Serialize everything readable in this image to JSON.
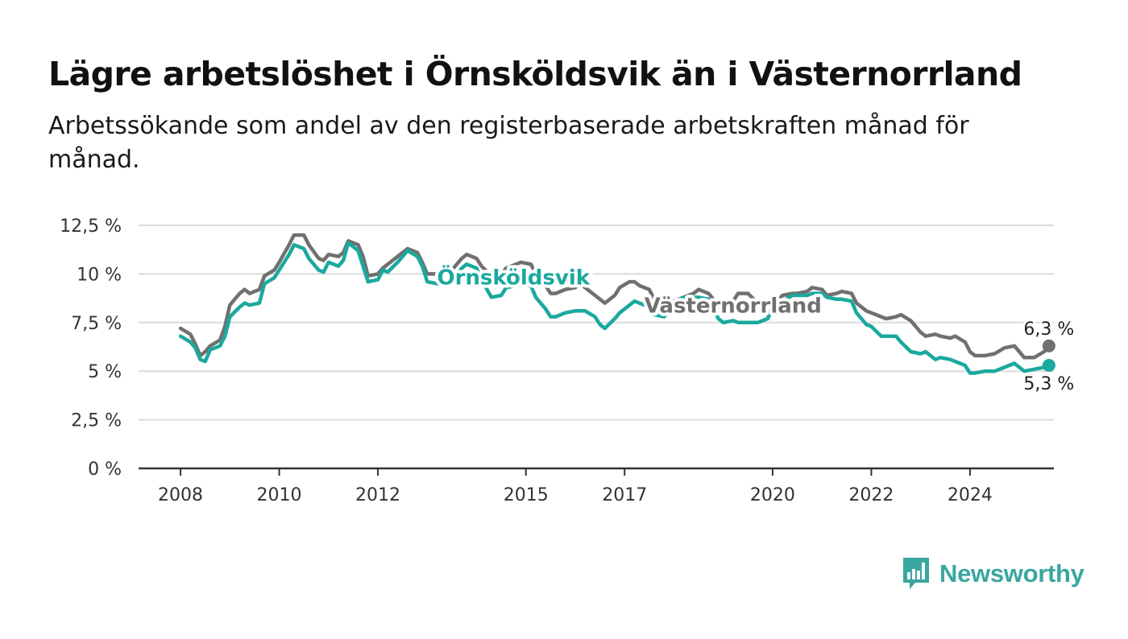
{
  "header": {
    "title": "Lägre arbetslöshet i Örnsköldsvik än i Västernorrland",
    "subtitle": "Arbetssökande som andel av den registerbaserade arbetskraften månad för månad."
  },
  "brand": {
    "name": "Newsworthy",
    "logo_icon": "bar-chart-speech-bubble-icon",
    "color": "#3aa6a0"
  },
  "chart_data": {
    "type": "line",
    "title": "Lägre arbetslöshet i Örnsköldsvik än i Västernorrland",
    "subtitle": "Arbetssökande som andel av den registerbaserade arbetskraften månad för månad.",
    "xlabel": "",
    "ylabel": "",
    "ylim": [
      0,
      12.5
    ],
    "xlim": [
      2007.15,
      2025.7
    ],
    "y_ticks": [
      0,
      2.5,
      5,
      7.5,
      10,
      12.5
    ],
    "y_tick_labels": [
      "0 %",
      "2,5 %",
      "5 %",
      "7,5 %",
      "10 %",
      "12,5 %"
    ],
    "x_ticks": [
      2008,
      2010,
      2012,
      2015,
      2017,
      2020,
      2022,
      2024
    ],
    "x_tick_labels": [
      "2008",
      "2010",
      "2012",
      "2015",
      "2017",
      "2020",
      "2022",
      "2024"
    ],
    "grid": "horizontal",
    "legend": "inline labels",
    "series": [
      {
        "name": "Västernorrland",
        "color": "#707070",
        "end_label": "6,3 %",
        "points": [
          [
            2008.0,
            7.2
          ],
          [
            2008.2,
            6.9
          ],
          [
            2008.3,
            6.4
          ],
          [
            2008.4,
            5.8
          ],
          [
            2008.5,
            6.0
          ],
          [
            2008.6,
            6.3
          ],
          [
            2008.8,
            6.6
          ],
          [
            2008.9,
            7.3
          ],
          [
            2009.0,
            8.4
          ],
          [
            2009.2,
            9.0
          ],
          [
            2009.3,
            9.2
          ],
          [
            2009.4,
            9.0
          ],
          [
            2009.6,
            9.2
          ],
          [
            2009.7,
            9.9
          ],
          [
            2009.9,
            10.2
          ],
          [
            2010.0,
            10.6
          ],
          [
            2010.2,
            11.5
          ],
          [
            2010.3,
            12.0
          ],
          [
            2010.5,
            12.0
          ],
          [
            2010.6,
            11.5
          ],
          [
            2010.8,
            10.8
          ],
          [
            2010.9,
            10.7
          ],
          [
            2011.0,
            11.0
          ],
          [
            2011.2,
            10.9
          ],
          [
            2011.3,
            11.1
          ],
          [
            2011.4,
            11.7
          ],
          [
            2011.6,
            11.5
          ],
          [
            2011.7,
            10.9
          ],
          [
            2011.8,
            9.9
          ],
          [
            2012.0,
            10.0
          ],
          [
            2012.1,
            10.3
          ],
          [
            2012.2,
            10.5
          ],
          [
            2012.4,
            10.9
          ],
          [
            2012.6,
            11.3
          ],
          [
            2012.8,
            11.1
          ],
          [
            2012.9,
            10.6
          ],
          [
            2013.0,
            10.0
          ],
          [
            2013.2,
            10.0
          ],
          [
            2013.3,
            10.0
          ],
          [
            2013.5,
            10.2
          ],
          [
            2013.7,
            10.8
          ],
          [
            2013.8,
            11.0
          ],
          [
            2014.0,
            10.8
          ],
          [
            2014.1,
            10.4
          ],
          [
            2014.3,
            9.9
          ],
          [
            2014.5,
            10.0
          ],
          [
            2014.6,
            10.3
          ],
          [
            2014.8,
            10.5
          ],
          [
            2014.9,
            10.6
          ],
          [
            2015.1,
            10.5
          ],
          [
            2015.2,
            10.0
          ],
          [
            2015.4,
            9.4
          ],
          [
            2015.5,
            9.0
          ],
          [
            2015.6,
            9.0
          ],
          [
            2015.8,
            9.2
          ],
          [
            2016.0,
            9.3
          ],
          [
            2016.1,
            9.5
          ],
          [
            2016.2,
            9.3
          ],
          [
            2016.4,
            8.9
          ],
          [
            2016.5,
            8.7
          ],
          [
            2016.6,
            8.5
          ],
          [
            2016.8,
            8.9
          ],
          [
            2016.9,
            9.3
          ],
          [
            2017.1,
            9.6
          ],
          [
            2017.2,
            9.6
          ],
          [
            2017.3,
            9.4
          ],
          [
            2017.5,
            9.2
          ],
          [
            2017.6,
            8.7
          ],
          [
            2017.8,
            8.2
          ],
          [
            2017.9,
            8.3
          ],
          [
            2018.0,
            8.6
          ],
          [
            2018.2,
            8.8
          ],
          [
            2018.4,
            9.0
          ],
          [
            2018.5,
            9.2
          ],
          [
            2018.7,
            9.0
          ],
          [
            2018.8,
            8.7
          ],
          [
            2018.9,
            8.3
          ],
          [
            2019.0,
            8.2
          ],
          [
            2019.2,
            8.6
          ],
          [
            2019.3,
            9.0
          ],
          [
            2019.5,
            9.0
          ],
          [
            2019.7,
            8.5
          ],
          [
            2019.8,
            8.0
          ],
          [
            2019.9,
            7.9
          ],
          [
            2020.0,
            8.3
          ],
          [
            2020.2,
            8.9
          ],
          [
            2020.4,
            9.0
          ],
          [
            2020.5,
            9.0
          ],
          [
            2020.7,
            9.1
          ],
          [
            2020.8,
            9.3
          ],
          [
            2021.0,
            9.2
          ],
          [
            2021.1,
            8.9
          ],
          [
            2021.3,
            9.0
          ],
          [
            2021.4,
            9.1
          ],
          [
            2021.6,
            9.0
          ],
          [
            2021.7,
            8.5
          ],
          [
            2021.9,
            8.1
          ],
          [
            2022.0,
            8.0
          ],
          [
            2022.2,
            7.8
          ],
          [
            2022.3,
            7.7
          ],
          [
            2022.5,
            7.8
          ],
          [
            2022.6,
            7.9
          ],
          [
            2022.8,
            7.6
          ],
          [
            2023.0,
            7.0
          ],
          [
            2023.1,
            6.8
          ],
          [
            2023.3,
            6.9
          ],
          [
            2023.4,
            6.8
          ],
          [
            2023.6,
            6.7
          ],
          [
            2023.7,
            6.8
          ],
          [
            2023.9,
            6.5
          ],
          [
            2024.0,
            6.0
          ],
          [
            2024.1,
            5.8
          ],
          [
            2024.3,
            5.8
          ],
          [
            2024.5,
            5.9
          ],
          [
            2024.7,
            6.2
          ],
          [
            2024.9,
            6.3
          ],
          [
            2025.0,
            6.0
          ],
          [
            2025.1,
            5.7
          ],
          [
            2025.3,
            5.7
          ],
          [
            2025.5,
            6.0
          ],
          [
            2025.6,
            6.3
          ]
        ]
      },
      {
        "name": "Örnsköldsvik",
        "color": "#1aa99e",
        "end_label": "5,3 %",
        "points": [
          [
            2008.0,
            6.8
          ],
          [
            2008.2,
            6.5
          ],
          [
            2008.3,
            6.2
          ],
          [
            2008.4,
            5.6
          ],
          [
            2008.5,
            5.5
          ],
          [
            2008.6,
            6.1
          ],
          [
            2008.8,
            6.3
          ],
          [
            2008.9,
            6.8
          ],
          [
            2009.0,
            7.8
          ],
          [
            2009.2,
            8.3
          ],
          [
            2009.3,
            8.5
          ],
          [
            2009.4,
            8.4
          ],
          [
            2009.6,
            8.5
          ],
          [
            2009.7,
            9.5
          ],
          [
            2009.9,
            9.8
          ],
          [
            2010.0,
            10.2
          ],
          [
            2010.2,
            11.0
          ],
          [
            2010.3,
            11.5
          ],
          [
            2010.5,
            11.3
          ],
          [
            2010.6,
            10.8
          ],
          [
            2010.8,
            10.2
          ],
          [
            2010.9,
            10.1
          ],
          [
            2011.0,
            10.6
          ],
          [
            2011.2,
            10.4
          ],
          [
            2011.3,
            10.7
          ],
          [
            2011.4,
            11.6
          ],
          [
            2011.6,
            11.2
          ],
          [
            2011.7,
            10.4
          ],
          [
            2011.8,
            9.6
          ],
          [
            2012.0,
            9.7
          ],
          [
            2012.1,
            10.2
          ],
          [
            2012.2,
            10.1
          ],
          [
            2012.4,
            10.6
          ],
          [
            2012.6,
            11.2
          ],
          [
            2012.8,
            10.9
          ],
          [
            2012.9,
            10.4
          ],
          [
            2013.0,
            9.6
          ],
          [
            2013.2,
            9.5
          ],
          [
            2013.3,
            9.5
          ],
          [
            2013.5,
            9.6
          ],
          [
            2013.7,
            10.3
          ],
          [
            2013.8,
            10.5
          ],
          [
            2014.0,
            10.3
          ],
          [
            2014.1,
            9.7
          ],
          [
            2014.3,
            8.8
          ],
          [
            2014.5,
            8.9
          ],
          [
            2014.6,
            9.3
          ],
          [
            2014.8,
            9.4
          ],
          [
            2014.9,
            9.5
          ],
          [
            2015.1,
            9.4
          ],
          [
            2015.2,
            8.8
          ],
          [
            2015.4,
            8.2
          ],
          [
            2015.5,
            7.8
          ],
          [
            2015.6,
            7.8
          ],
          [
            2015.8,
            8.0
          ],
          [
            2016.0,
            8.1
          ],
          [
            2016.1,
            8.1
          ],
          [
            2016.2,
            8.1
          ],
          [
            2016.4,
            7.8
          ],
          [
            2016.5,
            7.4
          ],
          [
            2016.6,
            7.2
          ],
          [
            2016.8,
            7.7
          ],
          [
            2016.9,
            8.0
          ],
          [
            2017.1,
            8.4
          ],
          [
            2017.2,
            8.6
          ],
          [
            2017.3,
            8.5
          ],
          [
            2017.5,
            8.3
          ],
          [
            2017.6,
            7.9
          ],
          [
            2017.8,
            7.8
          ],
          [
            2017.9,
            8.1
          ],
          [
            2018.0,
            8.5
          ],
          [
            2018.2,
            8.8
          ],
          [
            2018.4,
            8.8
          ],
          [
            2018.5,
            8.8
          ],
          [
            2018.7,
            8.7
          ],
          [
            2018.8,
            8.2
          ],
          [
            2018.9,
            7.7
          ],
          [
            2019.0,
            7.5
          ],
          [
            2019.2,
            7.6
          ],
          [
            2019.3,
            7.5
          ],
          [
            2019.5,
            7.5
          ],
          [
            2019.7,
            7.5
          ],
          [
            2019.8,
            7.6
          ],
          [
            2019.9,
            7.7
          ],
          [
            2020.0,
            8.2
          ],
          [
            2020.2,
            8.6
          ],
          [
            2020.4,
            8.9
          ],
          [
            2020.5,
            8.9
          ],
          [
            2020.7,
            8.9
          ],
          [
            2020.8,
            9.0
          ],
          [
            2021.0,
            9.0
          ],
          [
            2021.1,
            8.8
          ],
          [
            2021.3,
            8.7
          ],
          [
            2021.4,
            8.7
          ],
          [
            2021.6,
            8.6
          ],
          [
            2021.7,
            8.0
          ],
          [
            2021.9,
            7.4
          ],
          [
            2022.0,
            7.3
          ],
          [
            2022.2,
            6.8
          ],
          [
            2022.3,
            6.8
          ],
          [
            2022.5,
            6.8
          ],
          [
            2022.6,
            6.5
          ],
          [
            2022.8,
            6.0
          ],
          [
            2023.0,
            5.9
          ],
          [
            2023.1,
            6.0
          ],
          [
            2023.3,
            5.6
          ],
          [
            2023.4,
            5.7
          ],
          [
            2023.6,
            5.6
          ],
          [
            2023.7,
            5.5
          ],
          [
            2023.9,
            5.3
          ],
          [
            2024.0,
            4.9
          ],
          [
            2024.1,
            4.9
          ],
          [
            2024.3,
            5.0
          ],
          [
            2024.5,
            5.0
          ],
          [
            2024.7,
            5.2
          ],
          [
            2024.9,
            5.4
          ],
          [
            2025.0,
            5.2
          ],
          [
            2025.1,
            5.0
          ],
          [
            2025.3,
            5.1
          ],
          [
            2025.5,
            5.2
          ],
          [
            2025.6,
            5.3
          ]
        ]
      }
    ],
    "inline_labels": [
      {
        "series": "Örnsköldsvik",
        "text": "Örnsköldsvik",
        "x": 2013.2,
        "y": 9.45
      },
      {
        "series": "Västernorrland",
        "text": "Västernorrland",
        "x": 2017.4,
        "y": 8.0
      }
    ]
  }
}
